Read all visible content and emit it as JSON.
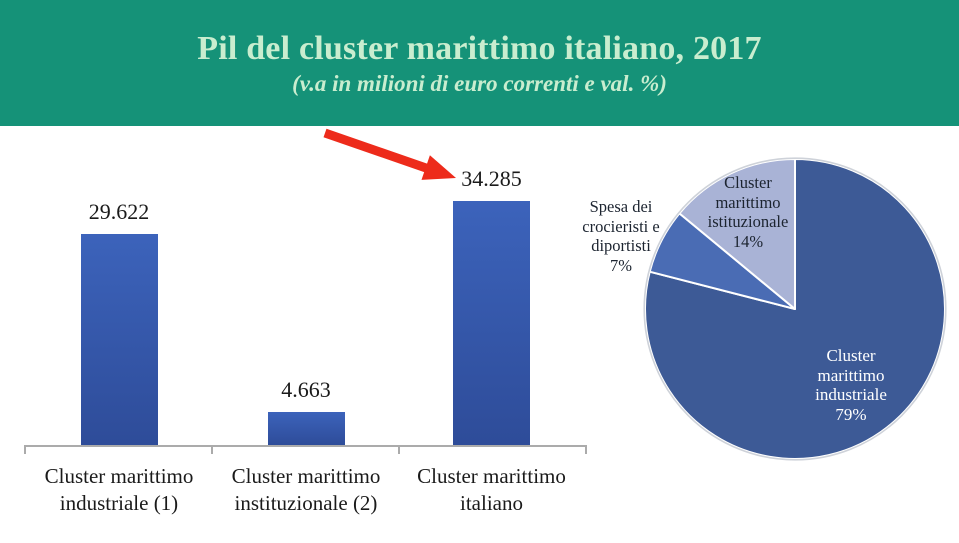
{
  "header": {
    "title": "Pil del cluster marittimo italiano, 2017",
    "subtitle": "(v.a in milioni di euro correnti e val. %)"
  },
  "colors": {
    "banner_bg": "#159278",
    "banner_text": "#C9EDCF",
    "bar_gradient_top": "#3C63BB",
    "bar_gradient_bottom": "#2E4C99",
    "axis": "#ABABAB",
    "label_text": "#1A1A1A",
    "arrow": "#ED2B1B",
    "pie_label_light": "#FFFFFF",
    "pie_label_dark": "#1C2430"
  },
  "chart_data": [
    {
      "type": "bar",
      "title": "",
      "categories": [
        "Cluster marittimo industriale (1)",
        "Cluster marittimo instituzionale (2)",
        "Cluster marittimo italiano"
      ],
      "values": [
        29622,
        4663,
        34285
      ],
      "value_labels": [
        "29.622",
        "4.663",
        "34.285"
      ],
      "xlabel": "",
      "ylabel": "",
      "ylim": [
        0,
        34285
      ],
      "grid": false,
      "legend": false,
      "bar_color": "blue gradient"
    },
    {
      "type": "pie",
      "title": "",
      "start_angle": "12 o'clock",
      "direction": "clockwise",
      "slices": [
        {
          "label": "Cluster marittimo industriale",
          "value_pct": 79,
          "color": "#3D5A96",
          "label_lines": [
            "Cluster",
            "marittimo",
            "industriale",
            "79%"
          ],
          "label_position": "inside"
        },
        {
          "label": "Spesa dei crocieristi e diportisti",
          "value_pct": 7,
          "color": "#4A6CB4",
          "label_lines": [
            "Spesa dei",
            "crocieristi e",
            "diportisti",
            "7%"
          ],
          "label_position": "outside-left"
        },
        {
          "label": "Cluster marittimo istituzionale",
          "value_pct": 14,
          "color": "#A9B3D6",
          "label_lines": [
            "Cluster",
            "marittimo",
            "istituzionale",
            "14%"
          ],
          "label_position": "inside"
        }
      ]
    }
  ],
  "annotations": {
    "arrow": {
      "color": "#ED2B1B",
      "points_to": "34.285"
    }
  }
}
